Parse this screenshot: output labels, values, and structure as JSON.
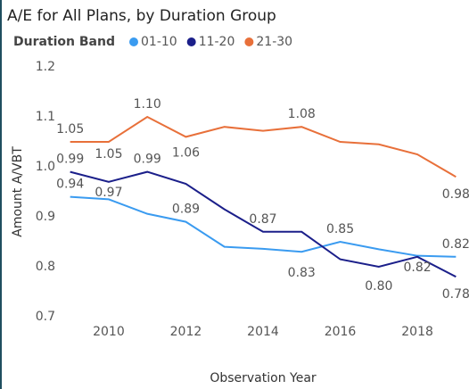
{
  "chart_data": {
    "type": "line",
    "title": "A/E for All Plans, by Duration Group",
    "legend_title": "Duration Band",
    "x_label": "Observation Year",
    "y_label": "Amount A/VBT",
    "x": [
      2009,
      2010,
      2011,
      2012,
      2013,
      2014,
      2015,
      2016,
      2017,
      2018,
      2019
    ],
    "xlim": [
      2008.8,
      2019.2
    ],
    "xticks": [
      2010,
      2012,
      2014,
      2016,
      2018
    ],
    "ylim": [
      0.7,
      1.2
    ],
    "yticks": [
      0.7,
      0.8,
      0.9,
      {
        "value": 1,
        "label": "1.0"
      },
      1.1,
      1.2
    ],
    "grid": false,
    "legend": "top-left",
    "series": [
      {
        "name": "01-10",
        "color": "#3a9bf0",
        "values": [
          0.94,
          0.935,
          0.906,
          0.89,
          0.84,
          0.836,
          0.83,
          0.85,
          0.835,
          0.822,
          0.82
        ],
        "value_labels": [
          "0.94",
          null,
          null,
          "0.89",
          null,
          null,
          "0.83",
          "0.85",
          null,
          null,
          "0.82"
        ]
      },
      {
        "name": "11-20",
        "color": "#1b1f8a",
        "values": [
          0.99,
          0.97,
          0.99,
          0.966,
          0.915,
          0.87,
          0.87,
          0.815,
          0.8,
          0.82,
          0.78
        ],
        "value_labels": [
          "0.99",
          "0.97",
          "0.99",
          null,
          null,
          "0.87",
          null,
          null,
          "0.80",
          "0.82",
          "0.78"
        ]
      },
      {
        "name": "21-30",
        "color": "#e8703a",
        "values": [
          1.05,
          1.05,
          1.1,
          1.06,
          1.08,
          1.072,
          1.08,
          1.05,
          1.045,
          1.025,
          0.98
        ],
        "value_labels": [
          "1.05",
          "1.05",
          "1.10",
          "1.06",
          null,
          null,
          "1.08",
          null,
          null,
          null,
          "0.98"
        ]
      }
    ]
  }
}
